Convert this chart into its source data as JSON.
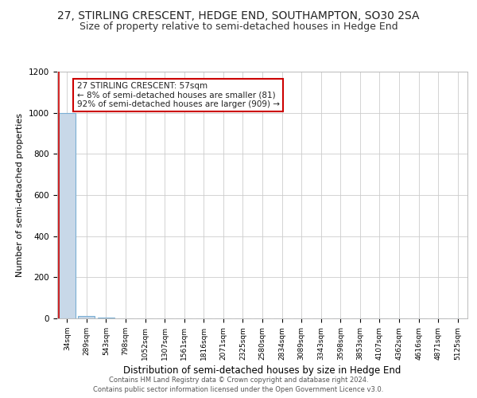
{
  "title": "27, STIRLING CRESCENT, HEDGE END, SOUTHAMPTON, SO30 2SA",
  "subtitle": "Size of property relative to semi-detached houses in Hedge End",
  "xlabel": "Distribution of semi-detached houses by size in Hedge End",
  "ylabel": "Number of semi-detached properties",
  "annotation_title": "27 STIRLING CRESCENT: 57sqm",
  "annotation_line1": "← 8% of semi-detached houses are smaller (81)",
  "annotation_line2": "92% of semi-detached houses are larger (909) →",
  "footer_line1": "Contains HM Land Registry data © Crown copyright and database right 2024.",
  "footer_line2": "Contains public sector information licensed under the Open Government Licence v3.0.",
  "categories": [
    "34sqm",
    "289sqm",
    "543sqm",
    "798sqm",
    "1052sqm",
    "1307sqm",
    "1561sqm",
    "1816sqm",
    "2071sqm",
    "2325sqm",
    "2580sqm",
    "2834sqm",
    "3089sqm",
    "3343sqm",
    "3598sqm",
    "3853sqm",
    "4107sqm",
    "4362sqm",
    "4616sqm",
    "4871sqm",
    "5125sqm"
  ],
  "values": [
    1000,
    10,
    2,
    1,
    1,
    1,
    0,
    0,
    0,
    0,
    0,
    0,
    0,
    0,
    0,
    0,
    0,
    0,
    0,
    0,
    0
  ],
  "bar_color": "#c8d8e8",
  "bar_edge_color": "#7bafd4",
  "annotation_box_edge_color": "#cc0000",
  "ylim": [
    0,
    1200
  ],
  "yticks": [
    0,
    200,
    400,
    600,
    800,
    1000,
    1200
  ],
  "background_color": "#ffffff",
  "grid_color": "#cccccc",
  "title_fontsize": 10,
  "subtitle_fontsize": 9,
  "ylabel_fontsize": 8,
  "xlabel_fontsize": 8.5,
  "tick_fontsize": 7.5,
  "xtick_fontsize": 6.5,
  "annotation_fontsize": 7.5,
  "footer_fontsize": 6
}
